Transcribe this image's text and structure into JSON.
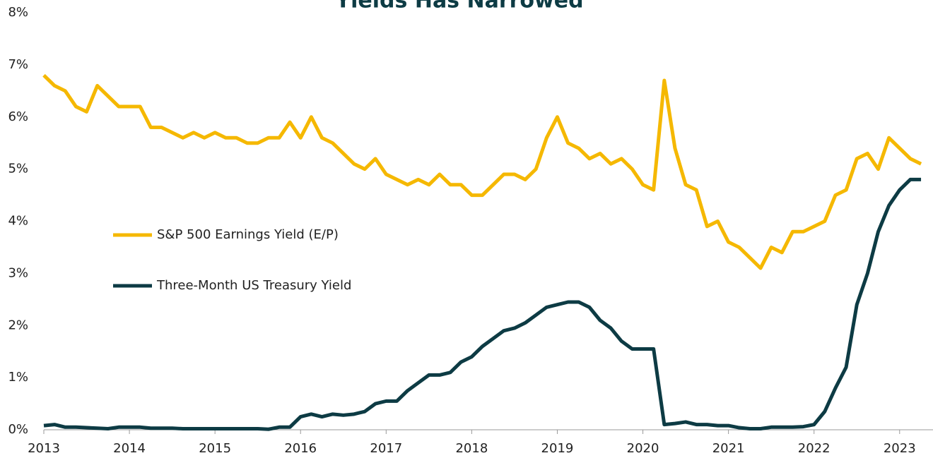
{
  "chart_data": {
    "type": "line",
    "title": "Yields Has Narrowed",
    "x": [
      2013,
      2013.125,
      2013.25,
      2013.375,
      2013.5,
      2013.625,
      2013.75,
      2013.875,
      2014,
      2014.125,
      2014.25,
      2014.375,
      2014.5,
      2014.625,
      2014.75,
      2014.875,
      2015,
      2015.125,
      2015.25,
      2015.375,
      2015.5,
      2015.625,
      2015.75,
      2015.875,
      2016,
      2016.125,
      2016.25,
      2016.375,
      2016.5,
      2016.625,
      2016.75,
      2016.875,
      2017,
      2017.125,
      2017.25,
      2017.375,
      2017.5,
      2017.625,
      2017.75,
      2017.875,
      2018,
      2018.125,
      2018.25,
      2018.375,
      2018.5,
      2018.625,
      2018.75,
      2018.875,
      2019,
      2019.125,
      2019.25,
      2019.375,
      2019.5,
      2019.625,
      2019.75,
      2019.875,
      2020,
      2020.125,
      2020.25,
      2020.375,
      2020.5,
      2020.625,
      2020.75,
      2020.875,
      2021,
      2021.125,
      2021.25,
      2021.375,
      2021.5,
      2021.625,
      2021.75,
      2021.875,
      2022,
      2022.125,
      2022.25,
      2022.375,
      2022.5,
      2022.625,
      2022.75,
      2022.875,
      2023,
      2023.125,
      2023.25
    ],
    "series": [
      {
        "name": "S&P 500 Earnings Yield (E/P)",
        "color": "#f5b800",
        "values": [
          6.8,
          6.6,
          6.5,
          6.2,
          6.1,
          6.6,
          6.4,
          6.2,
          6.2,
          6.2,
          5.8,
          5.8,
          5.7,
          5.6,
          5.7,
          5.6,
          5.7,
          5.6,
          5.6,
          5.5,
          5.5,
          5.6,
          5.6,
          5.9,
          5.6,
          6.0,
          5.6,
          5.5,
          5.3,
          5.1,
          5.0,
          5.2,
          4.9,
          4.8,
          4.7,
          4.8,
          4.7,
          4.9,
          4.7,
          4.7,
          4.5,
          4.5,
          4.7,
          4.9,
          4.9,
          4.8,
          5.0,
          5.6,
          6.0,
          5.5,
          5.4,
          5.2,
          5.3,
          5.1,
          5.2,
          5.0,
          4.7,
          4.6,
          6.7,
          5.4,
          4.7,
          4.6,
          3.9,
          4.0,
          3.6,
          3.5,
          3.3,
          3.1,
          3.5,
          3.4,
          3.8,
          3.8,
          3.9,
          4.0,
          4.5,
          4.6,
          5.2,
          5.3,
          5.0,
          5.6,
          5.4,
          5.2,
          5.1
        ]
      },
      {
        "name": "Three-Month US Treasury Yield",
        "color": "#0d3b44",
        "values": [
          0.08,
          0.1,
          0.05,
          0.05,
          0.04,
          0.03,
          0.02,
          0.05,
          0.05,
          0.05,
          0.03,
          0.03,
          0.03,
          0.02,
          0.02,
          0.02,
          0.02,
          0.02,
          0.02,
          0.02,
          0.02,
          0.01,
          0.05,
          0.05,
          0.25,
          0.3,
          0.25,
          0.3,
          0.28,
          0.3,
          0.35,
          0.5,
          0.55,
          0.55,
          0.75,
          0.9,
          1.05,
          1.05,
          1.1,
          1.3,
          1.4,
          1.6,
          1.75,
          1.9,
          1.95,
          2.05,
          2.2,
          2.35,
          2.4,
          2.45,
          2.45,
          2.35,
          2.1,
          1.95,
          1.7,
          1.55,
          1.55,
          1.55,
          0.1,
          0.12,
          0.15,
          0.1,
          0.1,
          0.08,
          0.08,
          0.04,
          0.02,
          0.02,
          0.05,
          0.05,
          0.05,
          0.06,
          0.1,
          0.35,
          0.8,
          1.2,
          2.4,
          3.0,
          3.8,
          4.3,
          4.6,
          4.8,
          4.8
        ]
      }
    ],
    "xlim": [
      2013,
      2023.39
    ],
    "xticks": [
      2013,
      2014,
      2015,
      2016,
      2017,
      2018,
      2019,
      2020,
      2021,
      2022,
      2023
    ],
    "ylim": [
      0,
      8
    ],
    "yticks": [
      {
        "value": 0,
        "label": "0%"
      },
      {
        "value": 1,
        "label": "1%"
      },
      {
        "value": 2,
        "label": "2%"
      },
      {
        "value": 3,
        "label": "3%"
      },
      {
        "value": 4,
        "label": "4%"
      },
      {
        "value": 5,
        "label": "5%"
      },
      {
        "value": 6,
        "label": "6%"
      },
      {
        "value": 7,
        "label": "7%"
      },
      {
        "value": 8,
        "label": "8%"
      }
    ],
    "legend": "left"
  }
}
